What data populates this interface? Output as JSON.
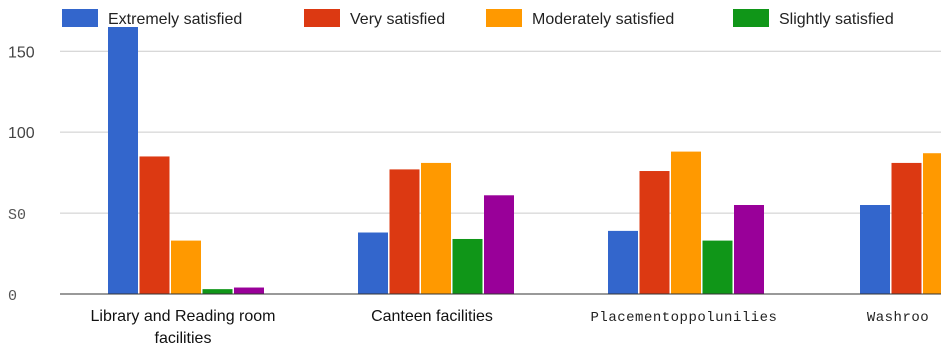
{
  "chart_data": {
    "type": "bar",
    "ylim": [
      0,
      165
    ],
    "yticks": [
      {
        "value": 0,
        "label": "0"
      },
      {
        "value": 50,
        "label": "S0"
      },
      {
        "value": 100,
        "label": "100"
      },
      {
        "value": 150,
        "label": "150"
      }
    ],
    "categories": [
      [
        "Library and Reading room",
        "facilities"
      ],
      [
        "Canteen facilities"
      ],
      [
        "Placementoppolunilies"
      ],
      [
        "Washroo"
      ]
    ],
    "series": [
      {
        "name": "Extremely satisfied",
        "color": "#3366cc",
        "values": [
          165,
          38,
          39,
          55
        ]
      },
      {
        "name": "Very satisfied",
        "color": "#dc3912",
        "values": [
          85,
          77,
          76,
          81
        ]
      },
      {
        "name": "Moderately satisfied",
        "color": "#ff9900",
        "values": [
          33,
          81,
          88,
          87
        ]
      },
      {
        "name": "Slightly satisfied",
        "color": "#109618",
        "values": [
          3,
          34,
          33,
          null
        ]
      },
      {
        "name": "",
        "color": "#990099",
        "values": [
          4,
          61,
          55,
          null
        ]
      }
    ],
    "legend_position": "top",
    "grid": true
  }
}
